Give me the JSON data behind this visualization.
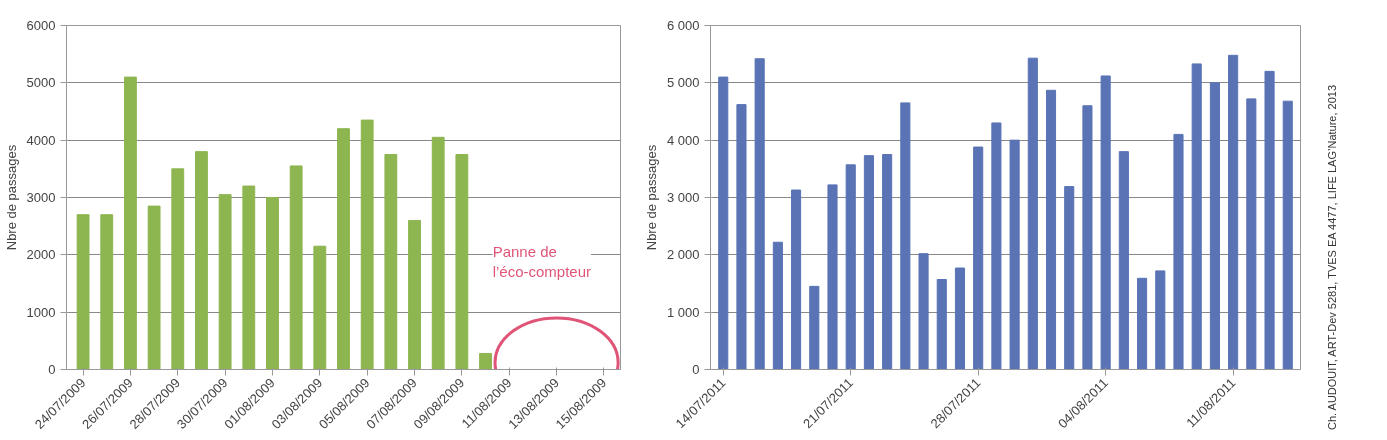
{
  "chart_data": [
    {
      "type": "bar",
      "ylabel": "Nbre de passages",
      "categories": [
        "24/07/2009",
        null,
        "26/07/2009",
        null,
        "28/07/2009",
        null,
        "30/07/2009",
        null,
        "01/08/2009",
        null,
        "03/08/2009",
        null,
        "05/08/2009",
        null,
        "07/08/2009",
        null,
        "09/08/2009",
        null,
        "11/08/2009",
        null,
        "13/08/2009",
        null,
        "15/08/2009"
      ],
      "values": [
        2700,
        2700,
        5100,
        2850,
        3500,
        3800,
        3050,
        3200,
        3000,
        3550,
        2150,
        4200,
        4350,
        3750,
        2600,
        4050,
        3750,
        280,
        0,
        0,
        0,
        0,
        0
      ],
      "color": "#8db550",
      "ylim": [
        0,
        6000
      ],
      "yticks": [
        0,
        1000,
        2000,
        3000,
        4000,
        5000,
        6000
      ],
      "grid": "y",
      "annotations": [
        "Panne de l’éco-compteur"
      ]
    },
    {
      "type": "bar",
      "ylabel": "Nbre de passages",
      "categories": [
        "14/07/2011",
        null,
        null,
        null,
        null,
        null,
        null,
        "21/07/2011",
        null,
        null,
        null,
        null,
        null,
        null,
        "28/07/2011",
        null,
        null,
        null,
        null,
        null,
        null,
        "04/08/2011",
        null,
        null,
        null,
        null,
        null,
        null,
        "11/08/2011",
        null,
        null,
        null
      ],
      "values": [
        5100,
        4620,
        5420,
        2220,
        3130,
        1450,
        3220,
        3570,
        3730,
        3750,
        4650,
        2020,
        1570,
        1770,
        3880,
        4300,
        4000,
        5430,
        4870,
        3190,
        4600,
        5120,
        3800,
        1590,
        1720,
        4100,
        5330,
        5000,
        5480,
        4720,
        5200,
        4680
      ],
      "color": "#5a73b5",
      "ylim": [
        0,
        6000
      ],
      "yticks": [
        0,
        {
          "value": 1000,
          "label": "1 000"
        },
        {
          "value": 2000,
          "label": "2 000"
        },
        {
          "value": 3000,
          "label": "3 000"
        },
        {
          "value": 4000,
          "label": "4 000"
        },
        {
          "value": 5000,
          "label": "5 000"
        },
        {
          "value": 6000,
          "label": "6 000"
        }
      ],
      "grid": "y",
      "annotations": [
        "Ch. AUDOUIT, ART-Dev 5281, TVES EA 4477, LIFE LAG’Nature, 2013"
      ]
    }
  ]
}
